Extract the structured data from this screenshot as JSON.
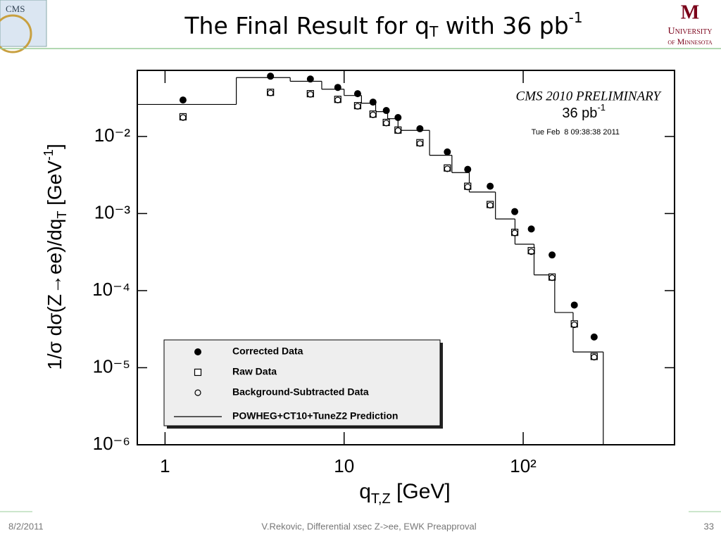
{
  "header": {
    "title": {
      "main": "The Final Result for q",
      "sub": "T",
      "rest": " with 36 pb",
      "sup": "-1"
    },
    "logo_left": "CMS",
    "logo_right_mark": "M",
    "logo_right_line1": "University",
    "logo_right_line2": "of Minnesota"
  },
  "footer": {
    "date": "8/2/2011",
    "center": "V.Rekovic, Differential xsec Z->ee, EWK Preapproval",
    "page": "33"
  },
  "chart_data": {
    "type": "scatter",
    "log_x": true,
    "log_y": true,
    "xlabel": {
      "main": "q",
      "sub": "T,Z",
      "rest": " [GeV]"
    },
    "ylabel": {
      "main": "1/σ dσ(Z→ee)/dq",
      "sub": "T",
      "rest": " [GeV",
      "sup": "-1",
      "end": "]"
    },
    "annotations": {
      "experiment": "CMS 2010 PRELIMINARY",
      "lumi_main": "36 pb",
      "lumi_sup": "-1",
      "timestamp": "Tue Feb  8 09:38:38 2011"
    },
    "xlim": [
      0.7,
      700
    ],
    "ylim": [
      1e-06,
      0.072
    ],
    "xticks": [
      1,
      10,
      {
        "value": 100,
        "label": "10²"
      }
    ],
    "yticks": [
      {
        "value": 1e-06,
        "label": "10⁻⁶"
      },
      {
        "value": 1e-05,
        "label": "10⁻⁵"
      },
      {
        "value": 0.0001,
        "label": "10⁻⁴"
      },
      {
        "value": 0.001,
        "label": "10⁻³"
      },
      {
        "value": 0.01,
        "label": "10⁻²"
      }
    ],
    "legend": "lower-left",
    "x": [
      1.26,
      3.88,
      6.48,
      9.22,
      11.9,
      14.5,
      17.2,
      20,
      26.5,
      37.7,
      49,
      65.4,
      89.7,
      111,
      145,
      193,
      249
    ],
    "series": [
      {
        "name": "Corrected Data",
        "marker": "filled-circle",
        "color": "#000000",
        "values": [
          0.0297,
          0.0605,
          0.0556,
          0.0433,
          0.0359,
          0.0279,
          0.0217,
          0.0176,
          0.0126,
          0.0063,
          0.00374,
          0.00226,
          0.00106,
          0.00063,
          0.00029,
          6.5e-05,
          2.5e-05
        ]
      },
      {
        "name": "Raw Data",
        "marker": "open-square",
        "color": "#000000",
        "values": [
          0.018,
          0.0374,
          0.0359,
          0.0303,
          0.0251,
          0.0195,
          0.0152,
          0.0121,
          0.0083,
          0.0039,
          0.00226,
          0.00131,
          0.00057,
          0.00033,
          0.00015,
          3.7e-05,
          1.4e-05
        ]
      },
      {
        "name": "Background-Subtracted Data",
        "marker": "open-circle",
        "color": "#000000",
        "values": [
          0.0176,
          0.0367,
          0.0352,
          0.0297,
          0.0246,
          0.0191,
          0.0149,
          0.0119,
          0.0081,
          0.0038,
          0.00221,
          0.00128,
          0.00056,
          0.00032,
          0.000147,
          3.6e-05,
          1.37e-05
        ]
      }
    ],
    "prediction": {
      "name": "POWHEG+CT10+TuneZ2 Prediction",
      "color": "#000000",
      "bins": [
        0.7,
        2.5,
        5,
        7.5,
        10,
        12.5,
        15,
        17.5,
        20,
        30,
        40,
        50,
        70,
        90,
        115,
        150,
        190,
        280
      ],
      "values": [
        0.026,
        0.058,
        0.052,
        0.041,
        0.034,
        0.027,
        0.021,
        0.017,
        0.012,
        0.0057,
        0.0034,
        0.0019,
        0.00085,
        0.0004,
        0.00016,
        5.2e-05,
        1.6e-05
      ]
    }
  }
}
